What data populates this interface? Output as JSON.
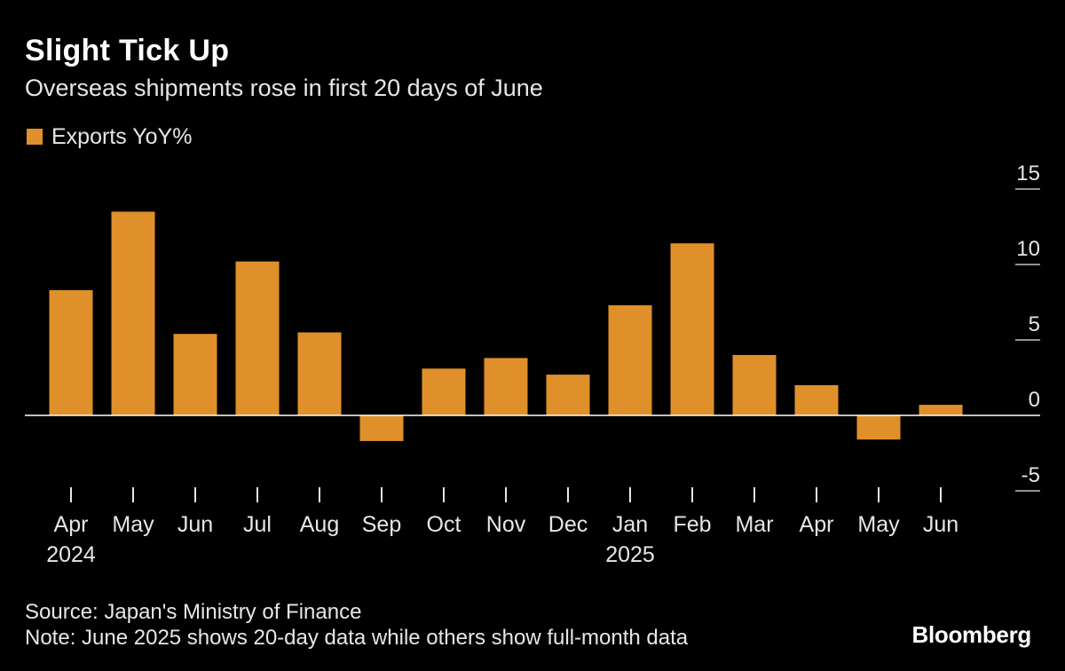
{
  "header": {
    "title": "Slight Tick Up",
    "subtitle": "Overseas shipments rose in first 20 days of June"
  },
  "footer": {
    "source": "Source: Japan's Ministry of Finance",
    "note": "Note: June 2025 shows 20-day data while others show full-month data",
    "brand": "Bloomberg"
  },
  "colors": {
    "background": "#000000",
    "bar": "#e0902a",
    "axis": "#ffffff"
  },
  "chart_data": {
    "type": "bar",
    "title": "Slight Tick Up",
    "subtitle": "Overseas shipments rose in first 20 days of June",
    "categories": [
      "Apr",
      "May",
      "Jun",
      "Jul",
      "Aug",
      "Sep",
      "Oct",
      "Nov",
      "Dec",
      "Jan",
      "Feb",
      "Mar",
      "Apr",
      "May",
      "Jun"
    ],
    "year_labels": [
      "2024",
      "",
      "",
      "",
      "",
      "",
      "",
      "",
      "",
      "2025",
      "",
      "",
      "",
      "",
      ""
    ],
    "series": [
      {
        "name": "Exports YoY%",
        "values": [
          8.3,
          13.5,
          5.4,
          10.2,
          5.5,
          -1.7,
          3.1,
          3.8,
          2.7,
          7.3,
          11.4,
          4.0,
          2.0,
          -1.6,
          0.7
        ]
      }
    ],
    "yticks": [
      15,
      10,
      5,
      0,
      -5
    ],
    "ylim": [
      -5,
      15
    ],
    "y_axis_position": "right",
    "legend_position": "top-left",
    "grid": false
  }
}
